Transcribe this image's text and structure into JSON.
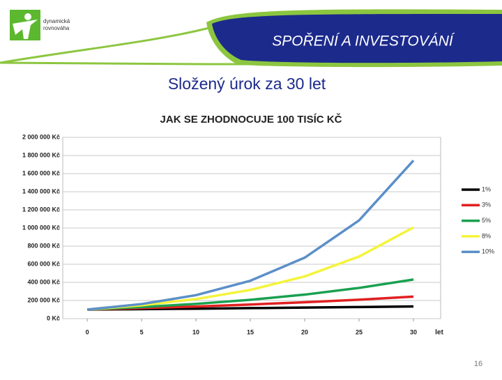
{
  "header": {
    "logo_text": [
      "dynamická",
      "rovnováha"
    ],
    "title": "SPOŘENÍ A INVESTOVÁNÍ"
  },
  "subtitle": "Složený úrok za 30 let",
  "chart_data": {
    "type": "line",
    "title": "JAK SE ZHODNOCUJE 100 TISÍC KČ",
    "x_label": "let",
    "x": [
      0,
      5,
      10,
      15,
      20,
      25,
      30
    ],
    "xlim": [
      -2.25,
      32.5
    ],
    "xticks": [
      0,
      5,
      10,
      15,
      20,
      25,
      30
    ],
    "ylim": [
      0,
      2000000
    ],
    "yticks": [
      {
        "value": 0,
        "label": "0 Kč"
      },
      {
        "value": 200000,
        "label": "200 000 Kč"
      },
      {
        "value": 400000,
        "label": "400 000 Kč"
      },
      {
        "value": 600000,
        "label": "600 000 Kč"
      },
      {
        "value": 800000,
        "label": "800 000 Kč"
      },
      {
        "value": 1000000,
        "label": "1 000 000 Kč"
      },
      {
        "value": 1200000,
        "label": "1 200 000 Kč"
      },
      {
        "value": 1400000,
        "label": "1 400 000 Kč"
      },
      {
        "value": 1600000,
        "label": "1 600 000 Kč"
      },
      {
        "value": 1800000,
        "label": "1 800 000 Kč"
      },
      {
        "value": 2000000,
        "label": "2 000 000 Kč"
      }
    ],
    "grid": true,
    "legend": "right",
    "series": [
      {
        "name": "1%",
        "color": "#000000",
        "values": [
          100000,
          105000,
          110000,
          116000,
          122000,
          128000,
          135000
        ]
      },
      {
        "name": "3%",
        "color": "#e02020",
        "values": [
          100000,
          116000,
          134000,
          156000,
          181000,
          209000,
          243000
        ]
      },
      {
        "name": "5%",
        "color": "#1aa050",
        "values": [
          100000,
          128000,
          163000,
          208000,
          265000,
          339000,
          432000
        ]
      },
      {
        "name": "8%",
        "color": "#f4f43c",
        "values": [
          100000,
          147000,
          216000,
          317000,
          466000,
          685000,
          1006000
        ]
      },
      {
        "name": "10%",
        "color": "#5b8fc8",
        "values": [
          100000,
          161000,
          259000,
          418000,
          673000,
          1084000,
          1745000
        ]
      }
    ]
  },
  "page_number": "16"
}
